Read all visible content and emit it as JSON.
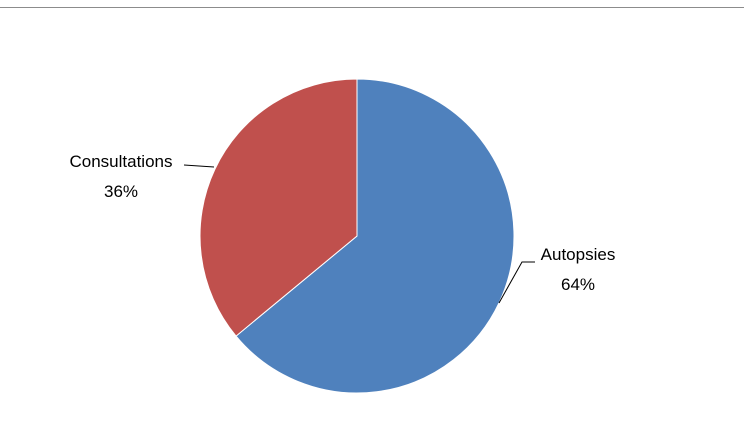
{
  "chart_data": {
    "type": "pie",
    "slices": [
      {
        "label": "Autopsies",
        "value": 64,
        "percent_label": "64%",
        "color": "#4f81bd"
      },
      {
        "label": "Consultations",
        "value": 36,
        "percent_label": "36%",
        "color": "#c0504d"
      }
    ],
    "legend": "none",
    "start_angle": "12 o'clock",
    "direction": "clockwise"
  }
}
